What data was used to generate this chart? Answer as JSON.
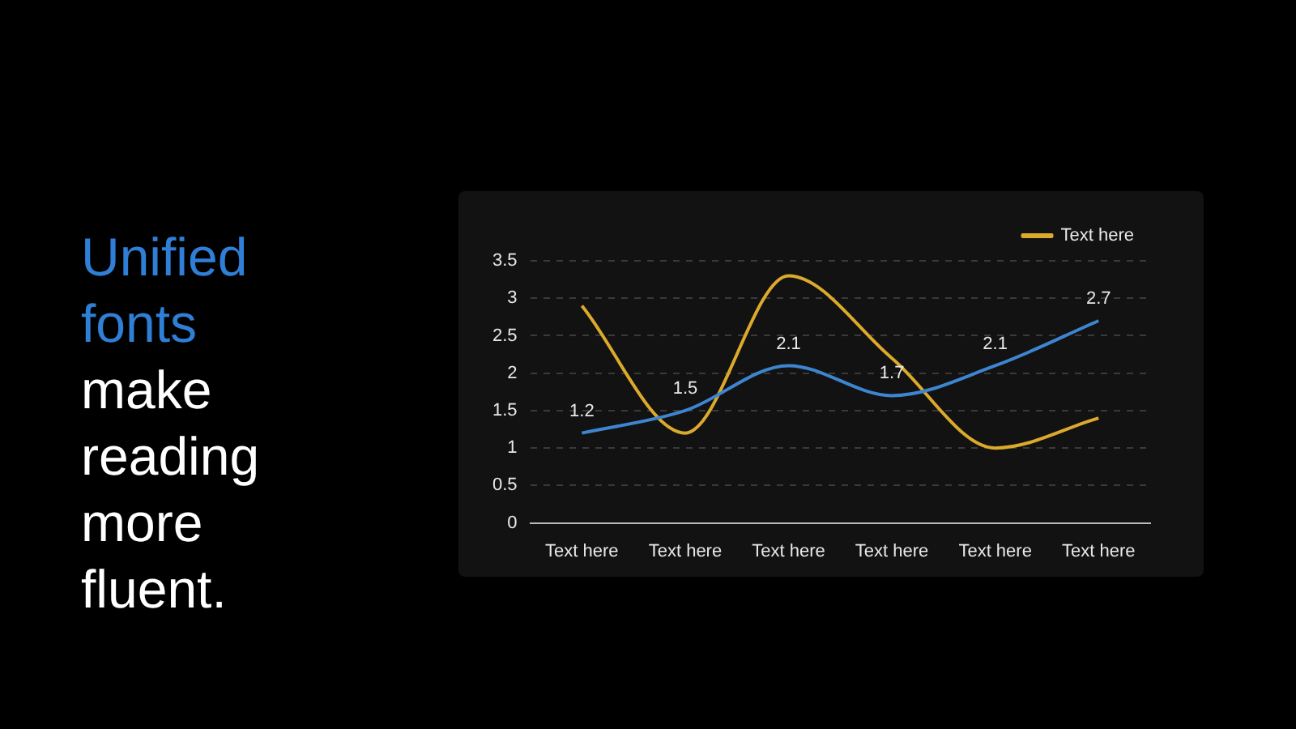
{
  "chart_data": {
    "type": "line",
    "title": "Unified fonts",
    "subtitle": "make reading more fluent.",
    "categories": [
      "Text here",
      "Text here",
      "Text here",
      "Text here",
      "Text here",
      "Text here"
    ],
    "series": [
      {
        "color": "#3d85d0",
        "values": [
          1.2,
          1.5,
          2.1,
          1.7,
          2.1,
          2.7
        ],
        "value_labels": [
          "1.2",
          "1.5",
          "2.1",
          "1.7",
          "2.1",
          "2.7"
        ]
      },
      {
        "name": "Text here",
        "color": "#dba92c",
        "values": [
          2.9,
          1.2,
          3.3,
          2.2,
          1.0,
          1.4
        ]
      }
    ],
    "ylim": [
      0,
      3.5
    ],
    "yticks": [
      0,
      0.5,
      1,
      1.5,
      2,
      2.5,
      3,
      3.5
    ],
    "grid": "y",
    "legend": "top right",
    "marker": "none",
    "line_style": "solid"
  }
}
